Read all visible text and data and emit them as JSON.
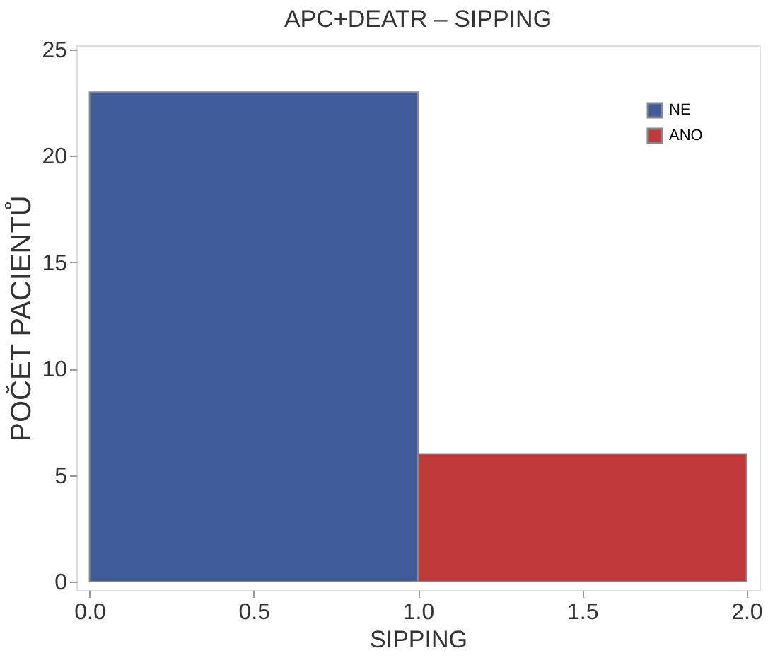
{
  "chart_data": {
    "type": "histogram",
    "title": "APC+DEATR – SIPPING",
    "xlabel": "SIPPING",
    "ylabel": "POČET PACIENTŮ",
    "bins": [
      0,
      1,
      2
    ],
    "series": [
      {
        "name": "NE",
        "color": "#3f5b99",
        "values": [
          23,
          null
        ]
      },
      {
        "name": "ANO",
        "color": "#c0393b",
        "values": [
          null,
          6
        ]
      }
    ],
    "xlim": [
      -0.04,
      2.04
    ],
    "ylim": [
      -0.4,
      25.2
    ],
    "xticks": [
      {
        "value": 0,
        "label": "0.0"
      },
      {
        "value": 0.5,
        "label": "0.5"
      },
      {
        "value": 1,
        "label": "1.0"
      },
      {
        "value": 1.5,
        "label": "1.5"
      },
      {
        "value": 2,
        "label": "2.0"
      }
    ],
    "yticks": [
      0,
      5,
      10,
      15,
      20,
      25
    ],
    "grid": false,
    "legend": "top right"
  }
}
